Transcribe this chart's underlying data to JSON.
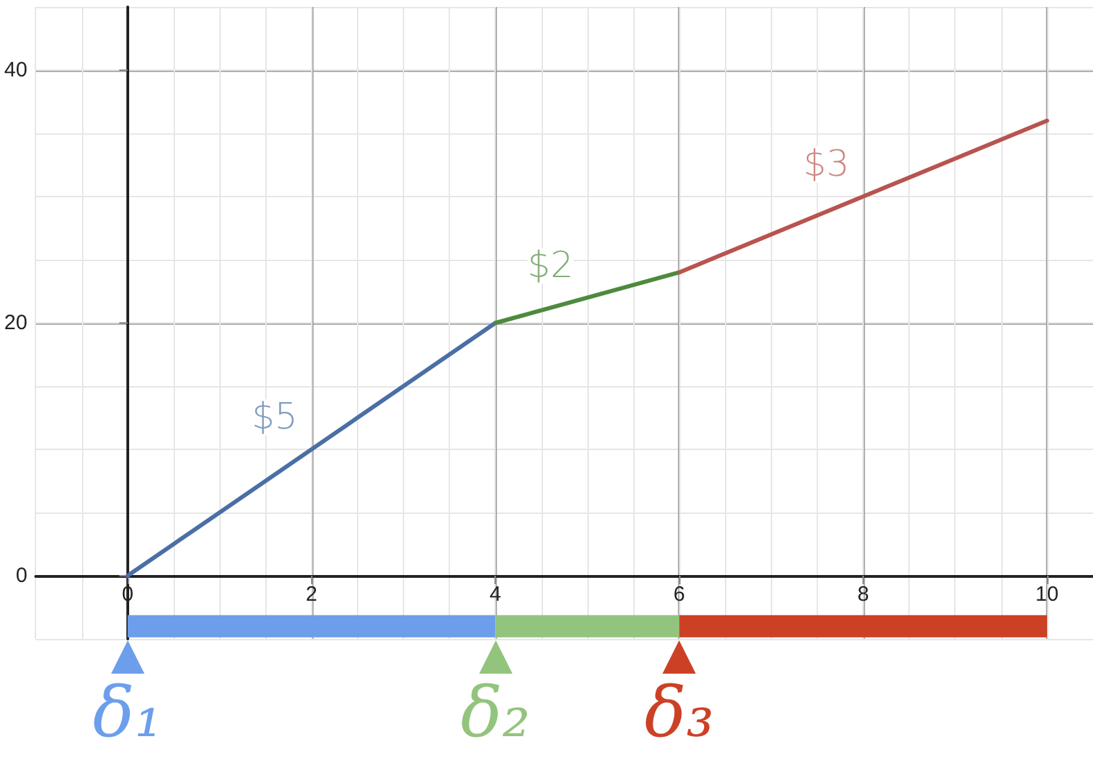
{
  "chart_data": {
    "type": "line",
    "xlim": [
      -1,
      10.5
    ],
    "ylim": [
      -5,
      45
    ],
    "xticks": [
      0,
      2,
      4,
      6,
      8,
      10
    ],
    "yticks": [
      0,
      20,
      40
    ],
    "grid": true,
    "marker": "none",
    "line_style": "solid",
    "series": [
      {
        "name": "$5",
        "color": "#4a6fa5",
        "x": [
          0,
          4
        ],
        "values": [
          0,
          20
        ]
      },
      {
        "name": "$2",
        "color": "#4e8a3e",
        "x": [
          4,
          6
        ],
        "values": [
          20,
          24
        ]
      },
      {
        "name": "$3",
        "color": "#b85450",
        "x": [
          6,
          10
        ],
        "values": [
          24,
          36
        ]
      },
      {
        "color": "#6d9eeb",
        "x": [
          0,
          4
        ],
        "values": [
          -4,
          -4
        ]
      },
      {
        "color": "#93c47d",
        "x": [
          4,
          6
        ],
        "values": [
          -4,
          -4
        ]
      },
      {
        "color": "#cc4125",
        "x": [
          6,
          10
        ],
        "values": [
          -4,
          -4
        ]
      }
    ],
    "annotations": [
      {
        "text": "δ₁",
        "x": 0,
        "y": -4
      },
      {
        "text": "δ₂",
        "x": 4,
        "y": -4
      },
      {
        "text": "δ₃",
        "x": 6,
        "y": -4
      }
    ]
  }
}
